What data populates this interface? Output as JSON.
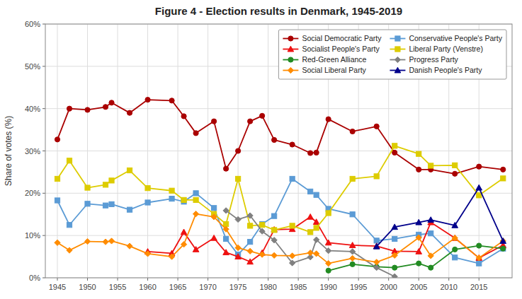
{
  "chart_data": {
    "type": "line",
    "title": "Figure 4 - Election results in Denmark, 1945-2019",
    "y_label": "Share of votes (%)",
    "xlim": [
      1943,
      2020.5
    ],
    "xticks": [
      1945,
      1950,
      1955,
      1960,
      1965,
      1970,
      1975,
      1980,
      1985,
      1990,
      1995,
      2000,
      2005,
      2010,
      2015
    ],
    "ylim": [
      0,
      0.6
    ],
    "yticks": [
      {
        "value": 0.0,
        "label": "0%"
      },
      {
        "value": 0.1,
        "label": "10%"
      },
      {
        "value": 0.2,
        "label": "20%"
      },
      {
        "value": 0.3,
        "label": "30%"
      },
      {
        "value": 0.4,
        "label": "40%"
      },
      {
        "value": 0.5,
        "label": "50%"
      },
      {
        "value": 0.6,
        "label": "60%"
      }
    ],
    "grid": true,
    "legend": "upper-right",
    "series": [
      {
        "name": "Social Democratic Party",
        "color": "#aa0000",
        "marker": "circle",
        "x": [
          1945,
          1947,
          1950,
          1953,
          1954,
          1957,
          1960,
          1964,
          1966,
          1968,
          1971,
          1973,
          1975,
          1977,
          1979,
          1981,
          1984,
          1987,
          1988,
          1990,
          1994,
          1998,
          2001,
          2005,
          2007,
          2011,
          2015,
          2019
        ],
        "values": [
          0.327,
          0.4,
          0.397,
          0.404,
          0.414,
          0.39,
          0.421,
          0.419,
          0.382,
          0.342,
          0.37,
          0.258,
          0.3,
          0.37,
          0.383,
          0.326,
          0.315,
          0.295,
          0.296,
          0.375,
          0.346,
          0.358,
          0.296,
          0.256,
          0.256,
          0.246,
          0.263,
          0.256
        ]
      },
      {
        "name": "Conservative People's Party",
        "color": "#5b9bd5",
        "marker": "square",
        "x": [
          1945,
          1947,
          1950,
          1953,
          1954,
          1957,
          1960,
          1964,
          1966,
          1968,
          1971,
          1973,
          1975,
          1977,
          1979,
          1981,
          1984,
          1987,
          1988,
          1990,
          1994,
          1998,
          2001,
          2005,
          2007,
          2011,
          2015,
          2019
        ],
        "values": [
          0.183,
          0.125,
          0.175,
          0.171,
          0.174,
          0.161,
          0.178,
          0.187,
          0.18,
          0.2,
          0.165,
          0.092,
          0.055,
          0.085,
          0.127,
          0.146,
          0.234,
          0.204,
          0.196,
          0.163,
          0.15,
          0.088,
          0.092,
          0.102,
          0.105,
          0.048,
          0.034,
          0.069
        ]
      },
      {
        "name": "Socialist People's Party",
        "color": "#ee1111",
        "marker": "triangle",
        "x": [
          1960,
          1964,
          1966,
          1968,
          1971,
          1973,
          1975,
          1977,
          1979,
          1981,
          1984,
          1987,
          1988,
          1990,
          1994,
          1998,
          2001,
          2005,
          2007,
          2011,
          2015,
          2019
        ],
        "values": [
          0.062,
          0.058,
          0.108,
          0.067,
          0.094,
          0.06,
          0.05,
          0.038,
          0.059,
          0.114,
          0.115,
          0.144,
          0.132,
          0.083,
          0.077,
          0.075,
          0.063,
          0.062,
          0.131,
          0.094,
          0.047,
          0.077
        ]
      },
      {
        "name": "Liberal Party (Venstre)",
        "color": "#ddcc00",
        "marker": "square",
        "x": [
          1945,
          1947,
          1950,
          1953,
          1954,
          1957,
          1960,
          1964,
          1966,
          1968,
          1971,
          1973,
          1975,
          1977,
          1979,
          1981,
          1984,
          1987,
          1988,
          1990,
          1994,
          1998,
          2001,
          2005,
          2007,
          2011,
          2015,
          2019
        ],
        "values": [
          0.234,
          0.277,
          0.213,
          0.22,
          0.23,
          0.254,
          0.212,
          0.206,
          0.184,
          0.184,
          0.151,
          0.127,
          0.234,
          0.123,
          0.125,
          0.113,
          0.123,
          0.108,
          0.118,
          0.153,
          0.234,
          0.24,
          0.312,
          0.293,
          0.265,
          0.266,
          0.195,
          0.235
        ]
      },
      {
        "name": "Red-Green Alliance",
        "color": "#228B22",
        "marker": "circle",
        "x": [
          1990,
          1994,
          1998,
          2001,
          2005,
          2007,
          2011,
          2015,
          2019
        ],
        "values": [
          0.017,
          0.032,
          0.026,
          0.024,
          0.034,
          0.024,
          0.067,
          0.076,
          0.069
        ]
      },
      {
        "name": "Progress Party",
        "color": "#808080",
        "marker": "diamond",
        "x": [
          1973,
          1975,
          1977,
          1979,
          1981,
          1984,
          1987,
          1988,
          1990,
          1994,
          1998,
          2001
        ],
        "values": [
          0.159,
          0.138,
          0.147,
          0.11,
          0.089,
          0.035,
          0.049,
          0.09,
          0.064,
          0.062,
          0.024,
          0.003
        ]
      },
      {
        "name": "Social Liberal Party",
        "color": "#ff8c00",
        "marker": "diamond",
        "x": [
          1945,
          1947,
          1950,
          1953,
          1954,
          1957,
          1960,
          1964,
          1966,
          1968,
          1971,
          1973,
          1975,
          1977,
          1979,
          1981,
          1984,
          1987,
          1988,
          1990,
          1994,
          1998,
          2001,
          2005,
          2007,
          2011,
          2015,
          2019
        ],
        "values": [
          0.083,
          0.065,
          0.086,
          0.085,
          0.087,
          0.075,
          0.057,
          0.05,
          0.079,
          0.151,
          0.144,
          0.115,
          0.071,
          0.063,
          0.055,
          0.053,
          0.052,
          0.059,
          0.057,
          0.034,
          0.046,
          0.037,
          0.053,
          0.095,
          0.052,
          0.094,
          0.047,
          0.087
        ]
      },
      {
        "name": "Danish People's Party",
        "color": "#00008b",
        "marker": "triangle",
        "x": [
          1998,
          2001,
          2005,
          2007,
          2011,
          2015,
          2019
        ],
        "values": [
          0.074,
          0.12,
          0.131,
          0.137,
          0.124,
          0.213,
          0.087
        ]
      }
    ]
  }
}
